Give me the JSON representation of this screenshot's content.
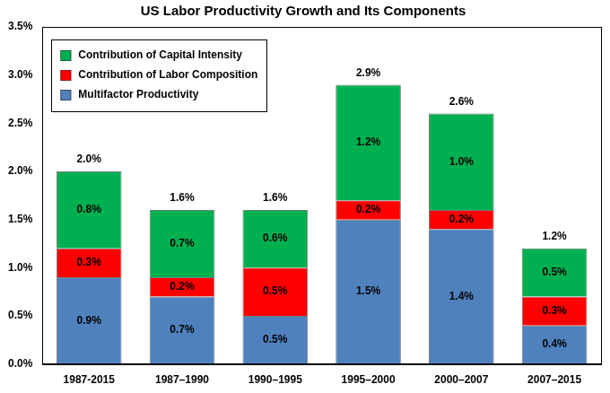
{
  "chart_data": {
    "type": "bar",
    "title": "US Labor Productivity Growth and Its Components",
    "categories": [
      "1987-2015",
      "1987–1990",
      "1990–1995",
      "1995–2000",
      "2000–2007",
      "2007–2015"
    ],
    "series": [
      {
        "name": "Multifactor Productivity",
        "color": "#4F81BD",
        "values": [
          0.9,
          0.7,
          0.5,
          1.5,
          1.4,
          0.4
        ],
        "value_labels": [
          "0.9%",
          "0.7%",
          "0.5%",
          "1.5%",
          "1.4%",
          "0.4%"
        ]
      },
      {
        "name": "Contribution of Labor Composition",
        "color": "#FF0000",
        "values": [
          0.3,
          0.2,
          0.5,
          0.2,
          0.2,
          0.3
        ],
        "value_labels": [
          "0.3%",
          "0.2%",
          "0.5%",
          "0.2%",
          "0.2%",
          "0.3%"
        ]
      },
      {
        "name": "Contribution of Capital Intensity",
        "color": "#00B050",
        "values": [
          0.8,
          0.7,
          0.6,
          1.2,
          1.0,
          0.5
        ],
        "value_labels": [
          "0.8%",
          "0.7%",
          "0.6%",
          "1.2%",
          "1.0%",
          "0.5%"
        ]
      }
    ],
    "totals": {
      "values": [
        2.0,
        1.6,
        1.6,
        2.9,
        2.6,
        1.2
      ],
      "value_labels": [
        "2.0%",
        "1.6%",
        "1.6%",
        "2.9%",
        "2.6%",
        "1.2%"
      ]
    },
    "ylim": [
      0,
      3.5
    ],
    "yticks": [
      {
        "value": 0,
        "label": "0.0%"
      },
      {
        "value": 0.5,
        "label": "0.5%"
      },
      {
        "value": 1,
        "label": "1.0%"
      },
      {
        "value": 1.5,
        "label": "1.5%"
      },
      {
        "value": 2,
        "label": "2.0%"
      },
      {
        "value": 2.5,
        "label": "2.5%"
      },
      {
        "value": 3,
        "label": "3.0%"
      },
      {
        "value": 3.5,
        "label": "3.5%"
      }
    ],
    "stacked": true,
    "data_labels": true,
    "grid": false,
    "legend": "upper left"
  }
}
